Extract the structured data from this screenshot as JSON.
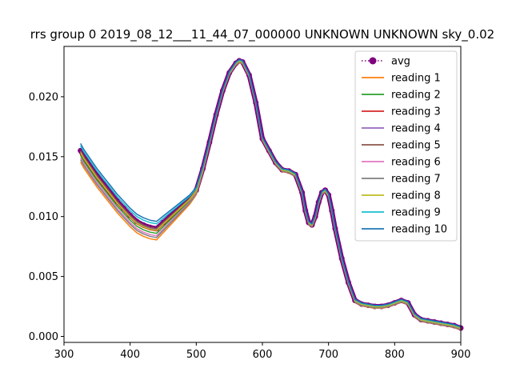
{
  "chart_data": {
    "type": "line",
    "title": "rrs group 0 2019_08_12___11_44_07_000000 UNKNOWN UNKNOWN sky_0.02",
    "xlabel": "",
    "ylabel": "",
    "xlim": [
      300,
      900
    ],
    "ylim": [
      -0.0005,
      0.0242
    ],
    "x_ticks": [
      300,
      400,
      500,
      600,
      700,
      800,
      900
    ],
    "x_tick_labels": [
      "300",
      "400",
      "500",
      "600",
      "700",
      "800",
      "900"
    ],
    "y_ticks": [
      0.0,
      0.005,
      0.01,
      0.015,
      0.02
    ],
    "y_tick_labels": [
      "0.000",
      "0.005",
      "0.010",
      "0.015",
      "0.020"
    ],
    "grid": false,
    "legend_position": "top-right",
    "x": [
      325,
      330,
      340,
      350,
      360,
      370,
      380,
      390,
      400,
      410,
      420,
      430,
      440,
      450,
      460,
      470,
      480,
      490,
      500,
      510,
      520,
      530,
      540,
      550,
      560,
      565,
      570,
      580,
      590,
      600,
      610,
      620,
      630,
      640,
      650,
      660,
      665,
      670,
      675,
      680,
      685,
      690,
      695,
      700,
      705,
      710,
      720,
      730,
      740,
      750,
      760,
      770,
      780,
      790,
      800,
      810,
      820,
      830,
      840,
      850,
      860,
      870,
      880,
      890,
      900
    ],
    "series": [
      {
        "name": "avg",
        "color": "#800080",
        "style": "dotted-marker",
        "values": [
          0.0155,
          0.015,
          0.0142,
          0.0134,
          0.0127,
          0.012,
          0.0113,
          0.0107,
          0.0101,
          0.0096,
          0.0093,
          0.0091,
          0.009,
          0.0095,
          0.01,
          0.0105,
          0.011,
          0.0115,
          0.0122,
          0.014,
          0.0162,
          0.0185,
          0.0205,
          0.022,
          0.0228,
          0.023,
          0.0229,
          0.0218,
          0.0195,
          0.0165,
          0.0155,
          0.0145,
          0.0139,
          0.0138,
          0.0135,
          0.012,
          0.0105,
          0.0095,
          0.0093,
          0.01,
          0.0112,
          0.012,
          0.0122,
          0.0118,
          0.0105,
          0.009,
          0.0065,
          0.0045,
          0.003,
          0.0027,
          0.0026,
          0.0025,
          0.0025,
          0.0026,
          0.0028,
          0.003,
          0.0028,
          0.0018,
          0.0014,
          0.0013,
          0.0012,
          0.0011,
          0.001,
          0.0009,
          0.0007
        ]
      },
      {
        "name": "reading 1",
        "color": "#ff7f0e",
        "offset": -0.00095
      },
      {
        "name": "reading 2",
        "color": "#2ca02c",
        "offset": -0.0004
      },
      {
        "name": "reading 3",
        "color": "#d62728",
        "offset": -0.0002
      },
      {
        "name": "reading 4",
        "color": "#9467bd",
        "offset": -5e-05
      },
      {
        "name": "reading 5",
        "color": "#8c564b",
        "offset": 0.0
      },
      {
        "name": "reading 6",
        "color": "#e377c2",
        "offset": -0.0006
      },
      {
        "name": "reading 7",
        "color": "#7f7f7f",
        "offset": -0.00075
      },
      {
        "name": "reading 8",
        "color": "#bcbd22",
        "offset": -0.00015
      },
      {
        "name": "reading 9",
        "color": "#17becf",
        "offset": 0.0004
      },
      {
        "name": "reading 10",
        "color": "#1f77b4",
        "offset": 0.0006
      }
    ]
  }
}
